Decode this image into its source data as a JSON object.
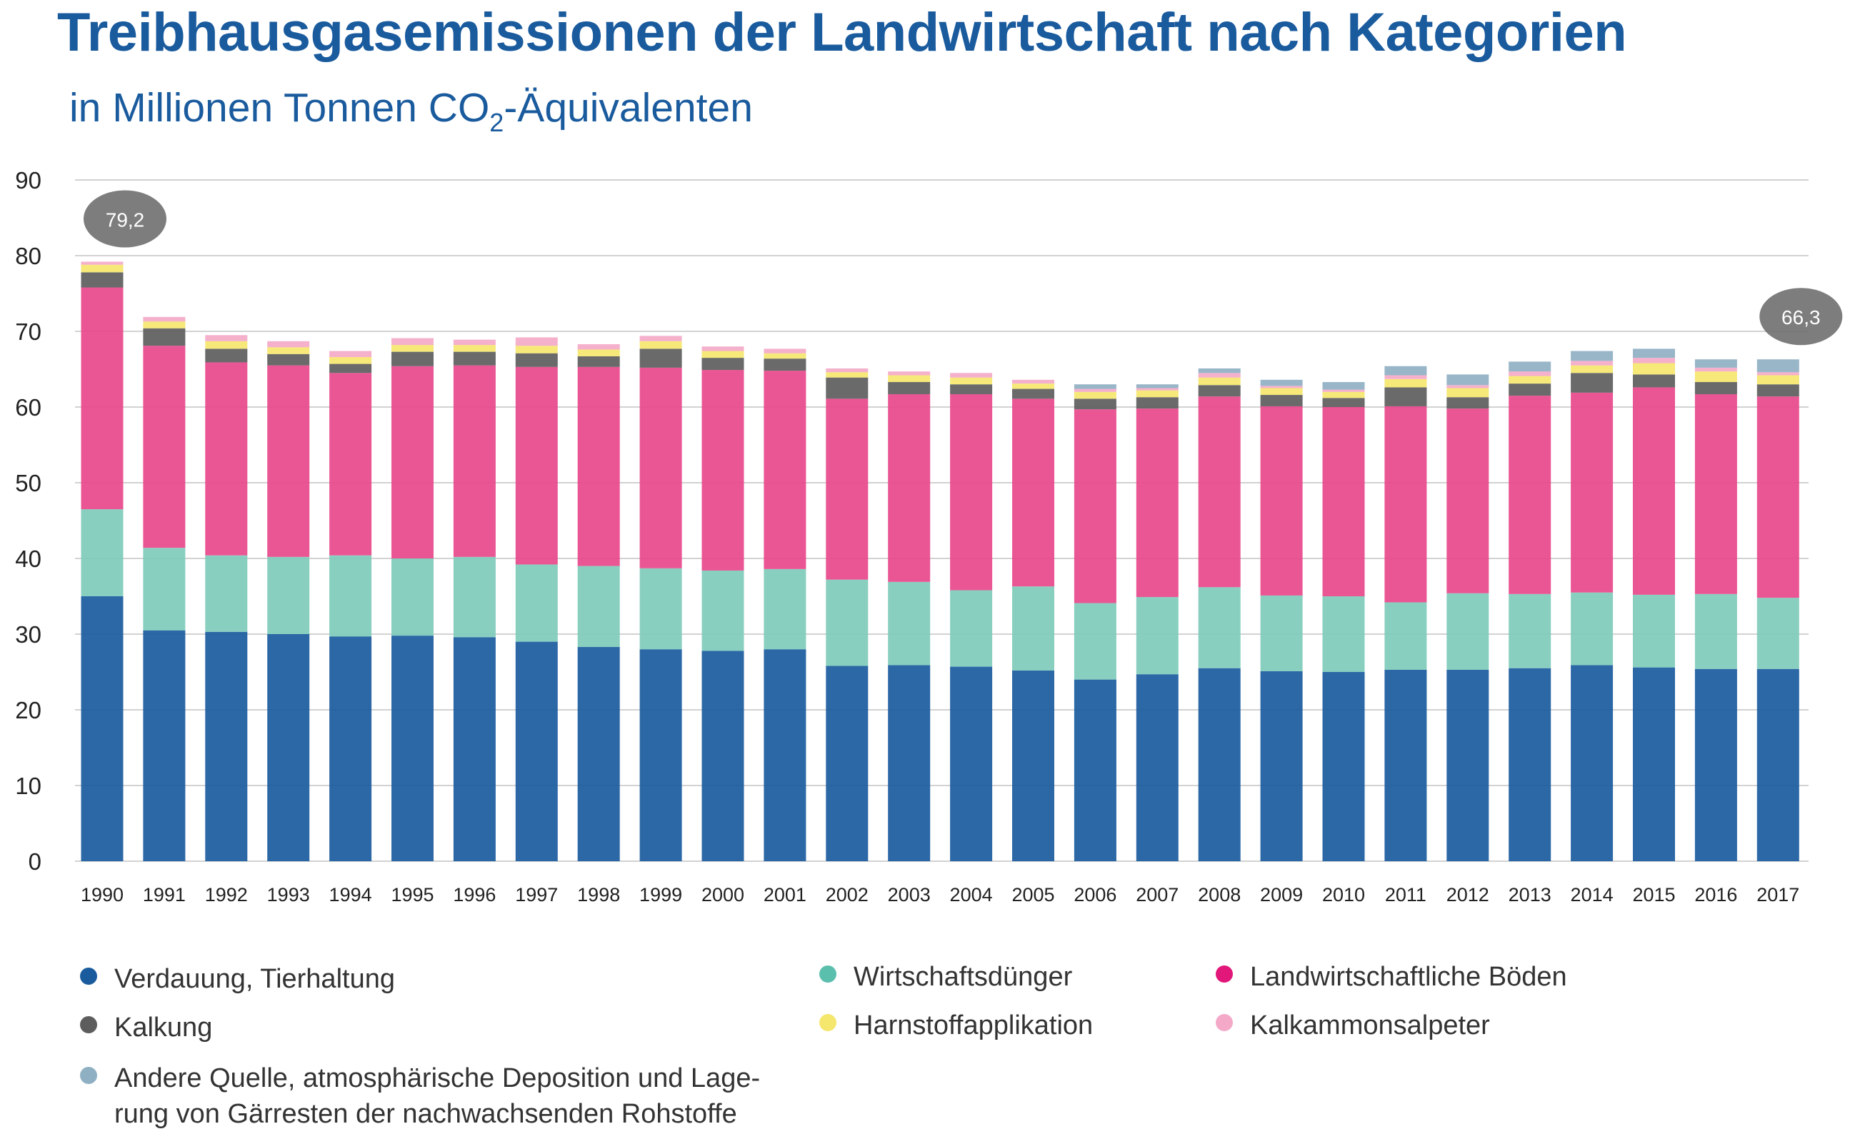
{
  "chart_data": {
    "type": "bar",
    "stacked": true,
    "title": "Treibhausgasemissionen der Landwirtschaft nach Kategorien",
    "subtitle_prefix": "in Millionen Tonnen CO",
    "subtitle_subscript": "2",
    "subtitle_suffix": "-Äquivalenten",
    "ylim": [
      0,
      90
    ],
    "yticks": [
      "0",
      "10",
      "20",
      "30",
      "40",
      "50",
      "60",
      "70",
      "80",
      "90"
    ],
    "grid": true,
    "categories": [
      "1990",
      "1991",
      "1992",
      "1993",
      "1994",
      "1995",
      "1996",
      "1997",
      "1998",
      "1999",
      "2000",
      "2001",
      "2002",
      "2003",
      "2004",
      "2005",
      "2006",
      "2007",
      "2008",
      "2009",
      "2010",
      "2011",
      "2012",
      "2013",
      "2014",
      "2015",
      "2016",
      "2017"
    ],
    "series": [
      {
        "name": "Verdauung, Tierhaltung",
        "color": "#1a5b9e",
        "values": [
          35.0,
          30.5,
          30.3,
          30.0,
          29.7,
          29.8,
          29.6,
          29.0,
          28.3,
          28.0,
          27.8,
          28.0,
          25.8,
          25.9,
          25.7,
          25.2,
          24.0,
          24.7,
          25.5,
          25.1,
          25.0,
          25.3,
          25.3,
          25.5,
          25.9,
          25.6,
          25.4,
          25.4
        ]
      },
      {
        "name": "Wirtschaftsdünger",
        "color": "#7fcbbb",
        "values": [
          11.5,
          10.9,
          10.1,
          10.2,
          10.7,
          10.2,
          10.6,
          10.2,
          10.7,
          10.7,
          10.6,
          10.6,
          11.4,
          11.0,
          10.1,
          11.1,
          10.1,
          10.2,
          10.7,
          10.0,
          10.0,
          8.9,
          10.1,
          9.8,
          9.6,
          9.6,
          9.9,
          9.4
        ]
      },
      {
        "name": "Landwirtschaftliche Böden",
        "color": "#e8488b",
        "values": [
          29.3,
          26.7,
          25.5,
          25.3,
          24.1,
          25.4,
          25.3,
          26.1,
          26.3,
          26.5,
          26.5,
          26.2,
          23.9,
          24.8,
          25.9,
          24.8,
          25.6,
          24.9,
          25.2,
          25.0,
          25.0,
          25.9,
          24.4,
          26.2,
          26.4,
          27.4,
          26.4,
          26.6
        ]
      },
      {
        "name": "Kalkung",
        "color": "#5d5d5d",
        "values": [
          2.0,
          2.3,
          1.8,
          1.5,
          1.2,
          1.9,
          1.8,
          1.8,
          1.4,
          2.5,
          1.6,
          1.6,
          2.8,
          1.6,
          1.3,
          1.3,
          1.4,
          1.5,
          1.5,
          1.5,
          1.2,
          2.5,
          1.5,
          1.6,
          2.6,
          1.7,
          1.6,
          1.6
        ]
      },
      {
        "name": "Harnstoffapplikation",
        "color": "#f5e66e",
        "values": [
          1.0,
          0.9,
          1.0,
          0.9,
          0.9,
          0.9,
          0.9,
          1.0,
          0.9,
          1.0,
          0.9,
          0.7,
          0.7,
          0.9,
          0.9,
          0.7,
          0.9,
          0.9,
          1.0,
          0.9,
          0.8,
          1.1,
          1.2,
          1.0,
          1.0,
          1.5,
          1.4,
          1.2
        ]
      },
      {
        "name": "Kalkammonsalpeter",
        "color": "#f4a9c8",
        "values": [
          0.4,
          0.6,
          0.8,
          0.8,
          0.8,
          0.9,
          0.7,
          1.1,
          0.7,
          0.7,
          0.6,
          0.6,
          0.5,
          0.5,
          0.6,
          0.5,
          0.4,
          0.3,
          0.6,
          0.3,
          0.3,
          0.5,
          0.4,
          0.6,
          0.6,
          0.7,
          0.5,
          0.4
        ]
      },
      {
        "name": "Andere Quelle, atmosphärische Deposition und Lagerung von Gärresten der nachwachsenden Rohstoffe",
        "color": "#8fb0c3",
        "values": [
          0.0,
          0.0,
          0.0,
          0.0,
          0.0,
          0.0,
          0.0,
          0.0,
          0.0,
          0.0,
          0.0,
          0.0,
          0.0,
          0.0,
          0.0,
          0.0,
          0.6,
          0.5,
          0.6,
          0.8,
          1.0,
          1.2,
          1.4,
          1.3,
          1.3,
          1.2,
          1.1,
          1.7
        ]
      }
    ],
    "annotations": [
      {
        "category": "1990",
        "text": "79,2"
      },
      {
        "category": "2017",
        "text": "66,3"
      }
    ]
  },
  "legend": {
    "col1": [
      "Verdauung, Tierhaltung",
      "Kalkung"
    ],
    "col1_multiline": [
      "Andere Quelle, atmosphärische Deposition und Lage-",
      "rung von Gärresten der nachwachsenden Rohstoffe"
    ],
    "col2": [
      "Wirtschaftsdünger",
      "Harnstoffapplikation"
    ],
    "col3": [
      "Landwirtschaftliche Böden",
      "Kalkammonsalpeter"
    ]
  }
}
